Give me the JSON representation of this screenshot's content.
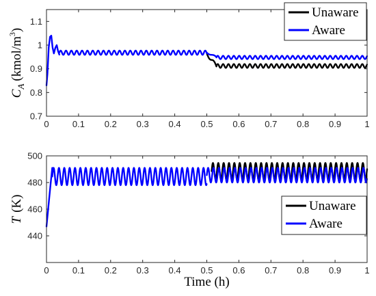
{
  "chart_data": [
    {
      "type": "line",
      "panel": "top",
      "ylabel_var": "C",
      "ylabel_sub": "A",
      "ylabel_unit": "(kmol/m",
      "ylabel_unit_sup": "3",
      "ylabel_unit_close": ")",
      "xlim": [
        0,
        1
      ],
      "ylim": [
        0.7,
        1.15
      ],
      "xticks": [
        "0",
        "0.1",
        "0.2",
        "0.3",
        "0.4",
        "0.5",
        "0.6",
        "0.7",
        "0.8",
        "0.9",
        "1"
      ],
      "yticks": [
        "0.7",
        "0.8",
        "0.9",
        "1",
        "1.1"
      ],
      "legend_position": "top-right",
      "series": [
        {
          "name": "Unaware",
          "color": "#000000",
          "segments": [
            {
              "x_start": 0.5,
              "x_end": 0.53,
              "kind": "transition",
              "from": 0.965,
              "to": 0.91
            },
            {
              "x_start": 0.53,
              "x_end": 1.0,
              "kind": "oscillation",
              "center": 0.912,
              "amplitude": 0.008,
              "period": 0.0167
            }
          ]
        },
        {
          "name": "Aware",
          "color": "#0000ff",
          "segments": [
            {
              "x_start": 0.0,
              "x_end": 0.04,
              "kind": "startup",
              "points": [
                [
                  0,
                  0.83
                ],
                [
                  0.003,
                  0.88
                ],
                [
                  0.007,
                  0.99
                ],
                [
                  0.011,
                  1.035
                ],
                [
                  0.015,
                  1.04
                ],
                [
                  0.019,
                  0.99
                ],
                [
                  0.023,
                  0.965
                ],
                [
                  0.028,
                  0.99
                ],
                [
                  0.032,
                  1.0
                ],
                [
                  0.036,
                  0.975
                ],
                [
                  0.04,
                  0.96
                ]
              ]
            },
            {
              "x_start": 0.04,
              "x_end": 0.5,
              "kind": "oscillation",
              "center": 0.968,
              "amplitude": 0.009,
              "period": 0.0167
            },
            {
              "x_start": 0.5,
              "x_end": 0.53,
              "kind": "transition",
              "from": 0.968,
              "to": 0.95
            },
            {
              "x_start": 0.53,
              "x_end": 1.0,
              "kind": "oscillation",
              "center": 0.948,
              "amplitude": 0.007,
              "period": 0.0167
            }
          ]
        }
      ]
    },
    {
      "type": "line",
      "panel": "bottom",
      "ylabel_var": "T",
      "ylabel_unit": "(K)",
      "xlabel": "Time (h)",
      "xlim": [
        0,
        1
      ],
      "ylim": [
        420,
        500
      ],
      "xticks": [
        "0",
        "0.1",
        "0.2",
        "0.3",
        "0.4",
        "0.5",
        "0.6",
        "0.7",
        "0.8",
        "0.9",
        "1"
      ],
      "yticks": [
        "440",
        "460",
        "480",
        "500"
      ],
      "legend_position": "lower-right",
      "series": [
        {
          "name": "Unaware",
          "color": "#000000",
          "segments": [
            {
              "x_start": 0.515,
              "x_end": 1.0,
              "kind": "oscillation",
              "center": 488.5,
              "amplitude": 6.2,
              "period": 0.0167
            }
          ]
        },
        {
          "name": "Aware",
          "color": "#0000ff",
          "segments": [
            {
              "x_start": 0.0,
              "x_end": 0.018,
              "kind": "startup",
              "points": [
                [
                  0,
                  447
                ],
                [
                  0.006,
                  462
                ],
                [
                  0.012,
                  477
                ],
                [
                  0.018,
                  491
                ]
              ]
            },
            {
              "x_start": 0.018,
              "x_end": 0.5,
              "kind": "oscillation",
              "center": 484.5,
              "amplitude": 6.5,
              "period": 0.0167
            },
            {
              "x_start": 0.5,
              "x_end": 1.0,
              "kind": "oscillation",
              "center": 485.5,
              "amplitude": 5.5,
              "period": 0.0167
            }
          ]
        }
      ]
    }
  ]
}
